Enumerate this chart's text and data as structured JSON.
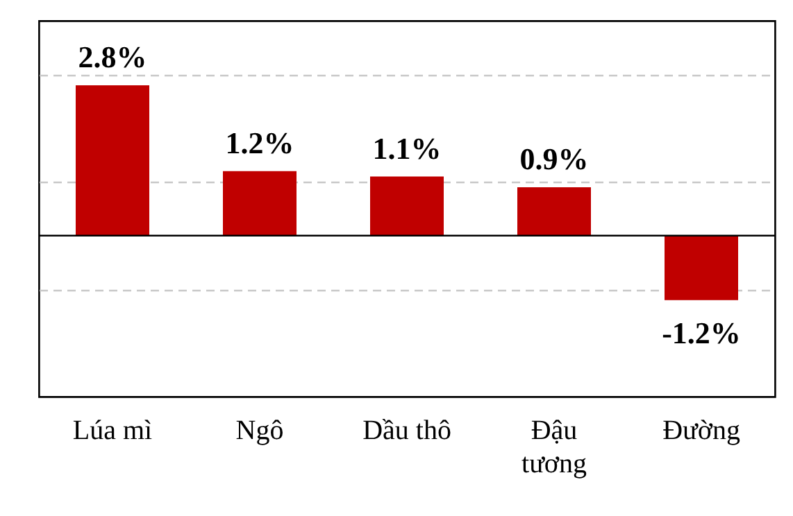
{
  "chart_data": {
    "type": "bar",
    "categories": [
      "Lúa mì",
      "Ngô",
      "Dầu thô",
      "Đậu tương",
      "Đường"
    ],
    "values": [
      2.8,
      1.2,
      1.1,
      0.9,
      -1.2
    ],
    "value_labels": [
      "2.8%",
      "1.2%",
      "1.1%",
      "0.9%",
      "-1.2%"
    ],
    "color": "#c00000",
    "ylim": [
      -3,
      4
    ],
    "yticks": [
      {
        "value": -1,
        "label": null
      },
      {
        "value": 1,
        "label": null
      },
      {
        "value": 3,
        "label": null
      }
    ],
    "grid": "y",
    "tick_labels": "x"
  }
}
